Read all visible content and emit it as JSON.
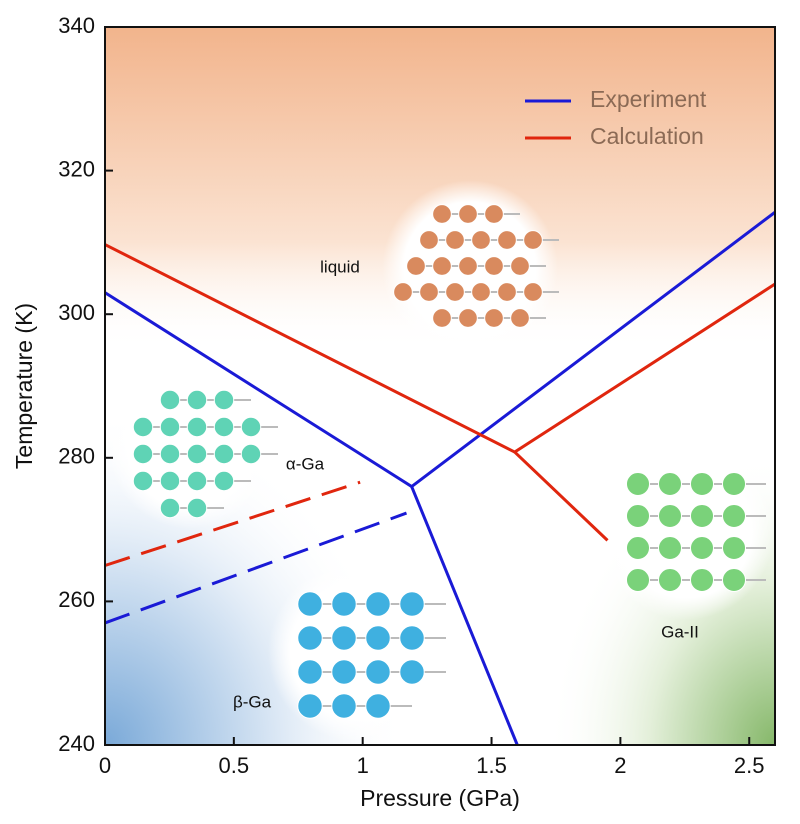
{
  "chart_data": {
    "type": "line",
    "x_label": "Pressure (GPa)",
    "y_label": "Temperature (K)",
    "xlim": [
      0,
      2.6
    ],
    "ylim": [
      240,
      340
    ],
    "xticks": [
      0,
      0.5,
      1,
      1.5,
      2,
      2.5
    ],
    "yticks": [
      240,
      260,
      280,
      300,
      320,
      340
    ],
    "legend": "top-right",
    "series": [
      {
        "name": "Experiment",
        "color": "#1a1ad6",
        "segments": [
          {
            "x": [
              0,
              1.19,
              2.6
            ],
            "values": [
              303,
              276,
              314.2
            ],
            "dashed": false
          },
          {
            "x": [
              1.19,
              1.6
            ],
            "values": [
              276,
              240
            ],
            "dashed": false
          },
          {
            "x": [
              0,
              1.17
            ],
            "values": [
              257,
              272.3
            ],
            "dashed": true
          }
        ]
      },
      {
        "name": "Calculation",
        "color": "#e0260e",
        "segments": [
          {
            "x": [
              0,
              1.59,
              2.6
            ],
            "values": [
              309.7,
              280.8,
              304.2
            ],
            "dashed": false
          },
          {
            "x": [
              1.59,
              1.95
            ],
            "values": [
              280.8,
              268.5
            ],
            "dashed": false
          },
          {
            "x": [
              0,
              0.99
            ],
            "values": [
              265,
              276.6
            ],
            "dashed": true
          }
        ]
      }
    ],
    "annotations": [
      "liquid",
      "α-Ga",
      "β-Ga",
      "Ga-II"
    ]
  }
}
